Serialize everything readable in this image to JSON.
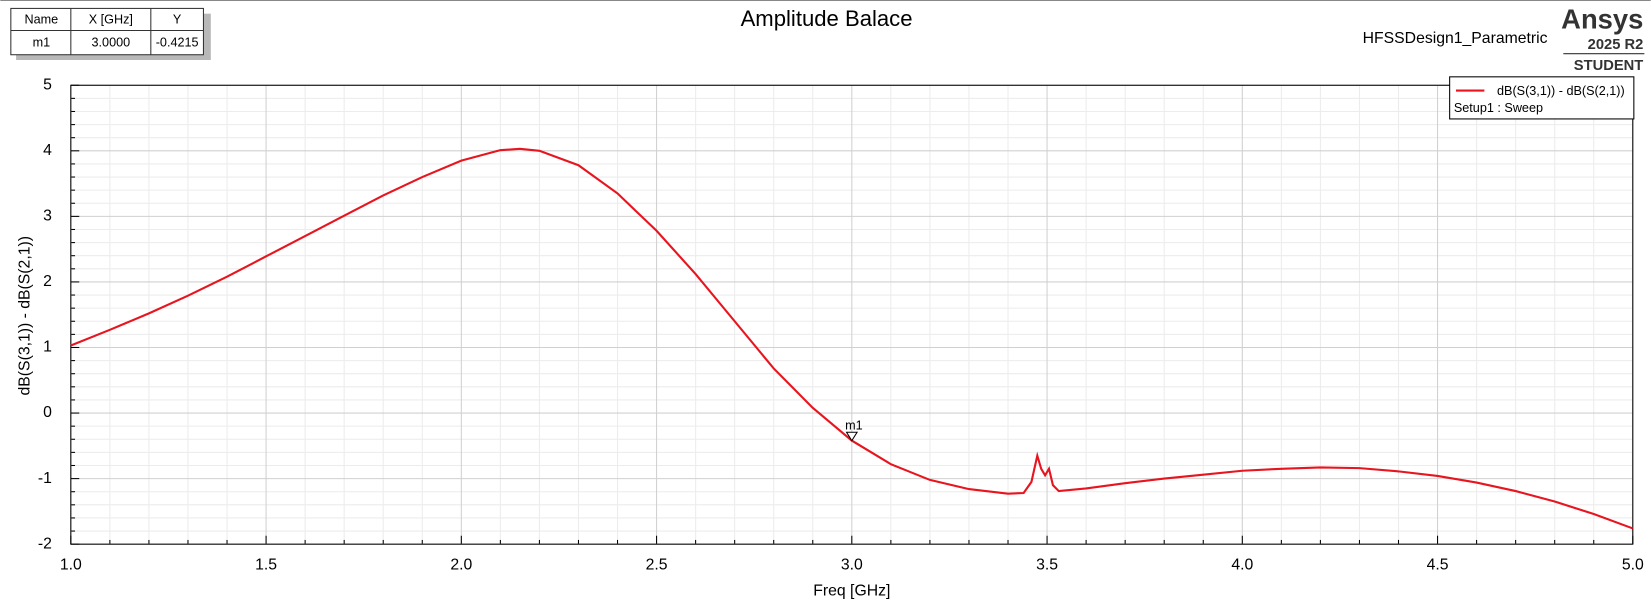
{
  "chart_data": {
    "type": "line",
    "title": "Amplitude Balace",
    "subtitle": "HFSSDesign1_Parametric",
    "brand": {
      "name": "Ansys",
      "version": "2025 R2",
      "edition": "STUDENT"
    },
    "x_label": "Freq [GHz]",
    "y_label": "dB(S(3,1)) - dB(S(2,1))",
    "legend_note": "Setup1 : Sweep",
    "grid": true,
    "legend_position": "top-right",
    "xlim": [
      1,
      5
    ],
    "xticks": [
      {
        "value": 1,
        "label": "1.0"
      },
      {
        "value": 1.5,
        "label": "1.5"
      },
      {
        "value": 2,
        "label": "2.0"
      },
      {
        "value": 2.5,
        "label": "2.5"
      },
      {
        "value": 3,
        "label": "3.0"
      },
      {
        "value": 3.5,
        "label": "3.5"
      },
      {
        "value": 4,
        "label": "4.0"
      },
      {
        "value": 4.5,
        "label": "4.5"
      },
      {
        "value": 5,
        "label": "5.0"
      }
    ],
    "ylim": [
      -2,
      5
    ],
    "yticks": [
      -2,
      -1,
      0,
      1,
      2,
      3,
      4,
      5
    ],
    "series": [
      {
        "name": "dB(S(3,1)) - dB(S(2,1))",
        "color": "#e8141e",
        "x": [
          1.0,
          1.1,
          1.2,
          1.3,
          1.4,
          1.5,
          1.6,
          1.7,
          1.8,
          1.9,
          2.0,
          2.1,
          2.15,
          2.2,
          2.3,
          2.4,
          2.5,
          2.6,
          2.7,
          2.8,
          2.9,
          3.0,
          3.1,
          3.2,
          3.3,
          3.4,
          3.44,
          3.46,
          3.475,
          3.485,
          3.495,
          3.505,
          3.515,
          3.53,
          3.6,
          3.7,
          3.8,
          3.9,
          4.0,
          4.1,
          4.2,
          4.3,
          4.4,
          4.5,
          4.6,
          4.7,
          4.8,
          4.9,
          5.0
        ],
        "values": [
          1.03,
          1.27,
          1.52,
          1.79,
          2.08,
          2.39,
          2.7,
          3.01,
          3.32,
          3.6,
          3.85,
          4.01,
          4.03,
          4.0,
          3.78,
          3.35,
          2.78,
          2.12,
          1.4,
          0.68,
          0.08,
          -0.42,
          -0.78,
          -1.02,
          -1.16,
          -1.23,
          -1.22,
          -1.05,
          -0.65,
          -0.85,
          -0.95,
          -0.85,
          -1.1,
          -1.19,
          -1.15,
          -1.07,
          -1.0,
          -0.94,
          -0.88,
          -0.85,
          -0.83,
          -0.84,
          -0.89,
          -0.96,
          -1.06,
          -1.19,
          -1.35,
          -1.54,
          -1.76
        ]
      }
    ]
  },
  "marker_table": {
    "header": [
      "Name",
      "X [GHz]",
      "Y"
    ],
    "rows": [
      {
        "name": "m1",
        "x": {
          "value": 3,
          "label": "3.0000"
        },
        "y": -0.4215
      }
    ]
  }
}
